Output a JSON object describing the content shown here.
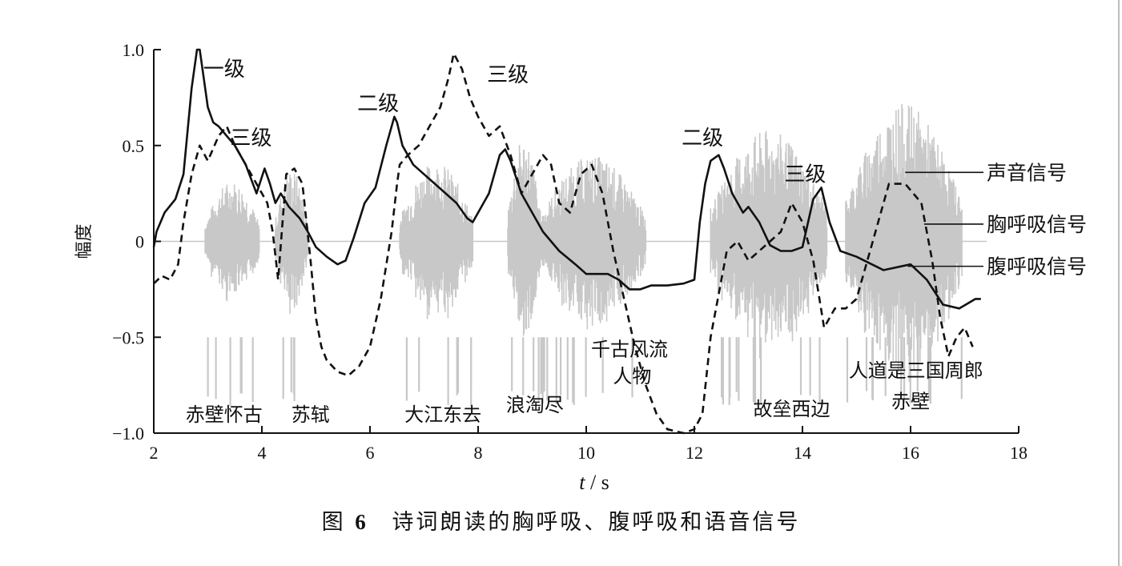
{
  "chart_data": {
    "type": "line",
    "title": "",
    "xlabel_italic": "t",
    "xlabel_unit": "/ s",
    "ylabel": "幅度",
    "xlim": [
      2,
      18
    ],
    "ylim": [
      -1.0,
      1.0
    ],
    "xticks": [
      2,
      4,
      6,
      8,
      10,
      12,
      14,
      16,
      18
    ],
    "xtick_labels": [
      "2",
      "4",
      "6",
      "8",
      "10",
      "12",
      "14",
      "16",
      "18"
    ],
    "yticks": [
      1.0,
      0.5,
      0,
      -0.5,
      -1.0
    ],
    "ytick_labels": [
      "1.0",
      "0.5",
      "0",
      "−0.5",
      "−1.0"
    ],
    "grid": false,
    "series": [
      {
        "name": "腹呼吸信号",
        "style": "solid",
        "color": "#111111",
        "x": [
          2.0,
          2.05,
          2.2,
          2.4,
          2.55,
          2.7,
          2.8,
          2.85,
          2.9,
          3.0,
          3.1,
          3.2,
          3.35,
          3.5,
          3.7,
          3.9,
          4.05,
          4.15,
          4.25,
          4.35,
          4.5,
          4.7,
          4.85,
          5.0,
          5.2,
          5.4,
          5.55,
          5.7,
          5.9,
          6.1,
          6.3,
          6.45,
          6.5,
          6.6,
          6.8,
          7.0,
          7.2,
          7.4,
          7.6,
          7.8,
          7.9,
          8.0,
          8.2,
          8.4,
          8.5,
          8.6,
          8.8,
          9.0,
          9.2,
          9.5,
          9.8,
          10.0,
          10.2,
          10.4,
          10.6,
          10.8,
          11.0,
          11.2,
          11.5,
          11.8,
          12.0,
          12.1,
          12.2,
          12.3,
          12.45,
          12.55,
          12.7,
          12.9,
          13.0,
          13.2,
          13.4,
          13.6,
          13.8,
          14.0,
          14.2,
          14.35,
          14.5,
          14.7,
          15.0,
          15.5,
          16.0,
          16.3,
          16.6,
          16.9,
          17.2,
          17.3
        ],
        "y": [
          -0.03,
          0.05,
          0.15,
          0.22,
          0.35,
          0.8,
          1.0,
          1.0,
          0.9,
          0.7,
          0.62,
          0.6,
          0.55,
          0.5,
          0.4,
          0.25,
          0.38,
          0.3,
          0.2,
          0.25,
          0.18,
          0.12,
          0.05,
          -0.03,
          -0.08,
          -0.12,
          -0.1,
          0.02,
          0.2,
          0.28,
          0.5,
          0.65,
          0.62,
          0.5,
          0.4,
          0.35,
          0.3,
          0.25,
          0.2,
          0.12,
          0.1,
          0.15,
          0.25,
          0.45,
          0.48,
          0.42,
          0.25,
          0.15,
          0.05,
          -0.05,
          -0.12,
          -0.17,
          -0.17,
          -0.17,
          -0.2,
          -0.25,
          -0.25,
          -0.23,
          -0.23,
          -0.22,
          -0.2,
          0.1,
          0.3,
          0.42,
          0.45,
          0.38,
          0.25,
          0.15,
          0.18,
          0.1,
          -0.02,
          -0.05,
          -0.05,
          -0.03,
          0.22,
          0.28,
          0.1,
          -0.05,
          -0.08,
          -0.15,
          -0.12,
          -0.2,
          -0.33,
          -0.35,
          -0.3,
          -0.3
        ]
      },
      {
        "name": "胸呼吸信号",
        "style": "dashed",
        "color": "#111111",
        "x": [
          2.0,
          2.15,
          2.3,
          2.45,
          2.55,
          2.7,
          2.85,
          3.0,
          3.2,
          3.35,
          3.5,
          3.7,
          3.9,
          4.1,
          4.2,
          4.3,
          4.45,
          4.6,
          4.75,
          4.9,
          5.0,
          5.1,
          5.2,
          5.4,
          5.6,
          5.8,
          6.0,
          6.2,
          6.4,
          6.5,
          6.55,
          6.7,
          6.9,
          7.1,
          7.3,
          7.45,
          7.55,
          7.7,
          7.85,
          8.0,
          8.2,
          8.4,
          8.6,
          8.8,
          9.0,
          9.2,
          9.35,
          9.5,
          9.7,
          9.9,
          10.1,
          10.3,
          10.5,
          10.7,
          10.9,
          11.1,
          11.3,
          11.5,
          11.8,
          12.0,
          12.15,
          12.3,
          12.5,
          12.6,
          12.8,
          13.0,
          13.2,
          13.4,
          13.6,
          13.8,
          14.0,
          14.2,
          14.4,
          14.6,
          14.8,
          15.0,
          15.3,
          15.6,
          15.9,
          16.2,
          16.4,
          16.55,
          16.7,
          16.85,
          17.0,
          17.15
        ],
        "y": [
          -0.22,
          -0.18,
          -0.2,
          -0.12,
          0.1,
          0.35,
          0.5,
          0.42,
          0.55,
          0.6,
          0.5,
          0.4,
          0.3,
          0.2,
          0.05,
          -0.2,
          0.35,
          0.38,
          0.3,
          -0.1,
          -0.4,
          -0.55,
          -0.62,
          -0.68,
          -0.7,
          -0.65,
          -0.55,
          -0.3,
          0.05,
          0.3,
          0.4,
          0.45,
          0.5,
          0.6,
          0.7,
          0.85,
          0.98,
          0.9,
          0.75,
          0.65,
          0.55,
          0.6,
          0.45,
          0.25,
          0.35,
          0.45,
          0.4,
          0.2,
          0.15,
          0.35,
          0.4,
          0.25,
          -0.05,
          -0.3,
          -0.55,
          -0.75,
          -0.9,
          -0.98,
          -1.0,
          -0.98,
          -0.9,
          -0.5,
          -0.2,
          -0.05,
          0.0,
          -0.1,
          -0.05,
          0.0,
          0.05,
          0.2,
          0.1,
          -0.1,
          -0.45,
          -0.35,
          -0.35,
          -0.3,
          0.0,
          0.3,
          0.3,
          0.2,
          -0.1,
          -0.4,
          -0.6,
          -0.5,
          -0.45,
          -0.55
        ]
      }
    ],
    "annotations": {
      "levels": [
        {
          "text": "一级",
          "x": 3.3,
          "y": 0.9
        },
        {
          "text": "三级",
          "x": 3.8,
          "y": 0.54
        },
        {
          "text": "二级",
          "x": 6.15,
          "y": 0.72
        },
        {
          "text": "三级",
          "x": 8.55,
          "y": 0.87
        },
        {
          "text": "二级",
          "x": 12.15,
          "y": 0.54
        },
        {
          "text": "三级",
          "x": 14.05,
          "y": 0.35
        }
      ],
      "words": [
        {
          "text": "赤壁怀古",
          "x": 3.3,
          "y": -0.9
        },
        {
          "text": "苏轼",
          "x": 4.9,
          "y": -0.9
        },
        {
          "text": "大江东去",
          "x": 7.35,
          "y": -0.9
        },
        {
          "text": "浪淘尽",
          "x": 9.05,
          "y": -0.85
        },
        {
          "text": "千古风流",
          "x": 10.8,
          "y": -0.56
        },
        {
          "text": "人物",
          "x": 10.85,
          "y": -0.7
        },
        {
          "text": "故垒西边",
          "x": 13.8,
          "y": -0.87
        },
        {
          "text": "人道是三国周郎",
          "x": 16.1,
          "y": -0.67
        },
        {
          "text": "赤壁",
          "x": 16.0,
          "y": -0.83
        }
      ]
    },
    "legend": {
      "placement": "right",
      "entries": [
        "声音信号",
        "胸呼吸信号",
        "腹呼吸信号"
      ]
    },
    "sound_signal": {
      "name": "声音信号",
      "color": "#c8c8c8",
      "segments": [
        {
          "x0": 2.95,
          "x1": 3.95,
          "amp": 0.32
        },
        {
          "x0": 4.25,
          "x1": 4.85,
          "amp": 0.38
        },
        {
          "x0": 6.55,
          "x1": 7.9,
          "amp": 0.42
        },
        {
          "x0": 8.55,
          "x1": 9.15,
          "amp": 0.55
        },
        {
          "x0": 9.15,
          "x1": 11.1,
          "amp": 0.45
        },
        {
          "x0": 12.3,
          "x1": 14.45,
          "amp": 0.58
        },
        {
          "x0": 14.8,
          "x1": 16.95,
          "amp": 0.72
        }
      ]
    }
  },
  "caption": {
    "prefix": "图",
    "number": "6",
    "text": "诗词朗读的胸呼吸、腹呼吸和语音信号"
  }
}
